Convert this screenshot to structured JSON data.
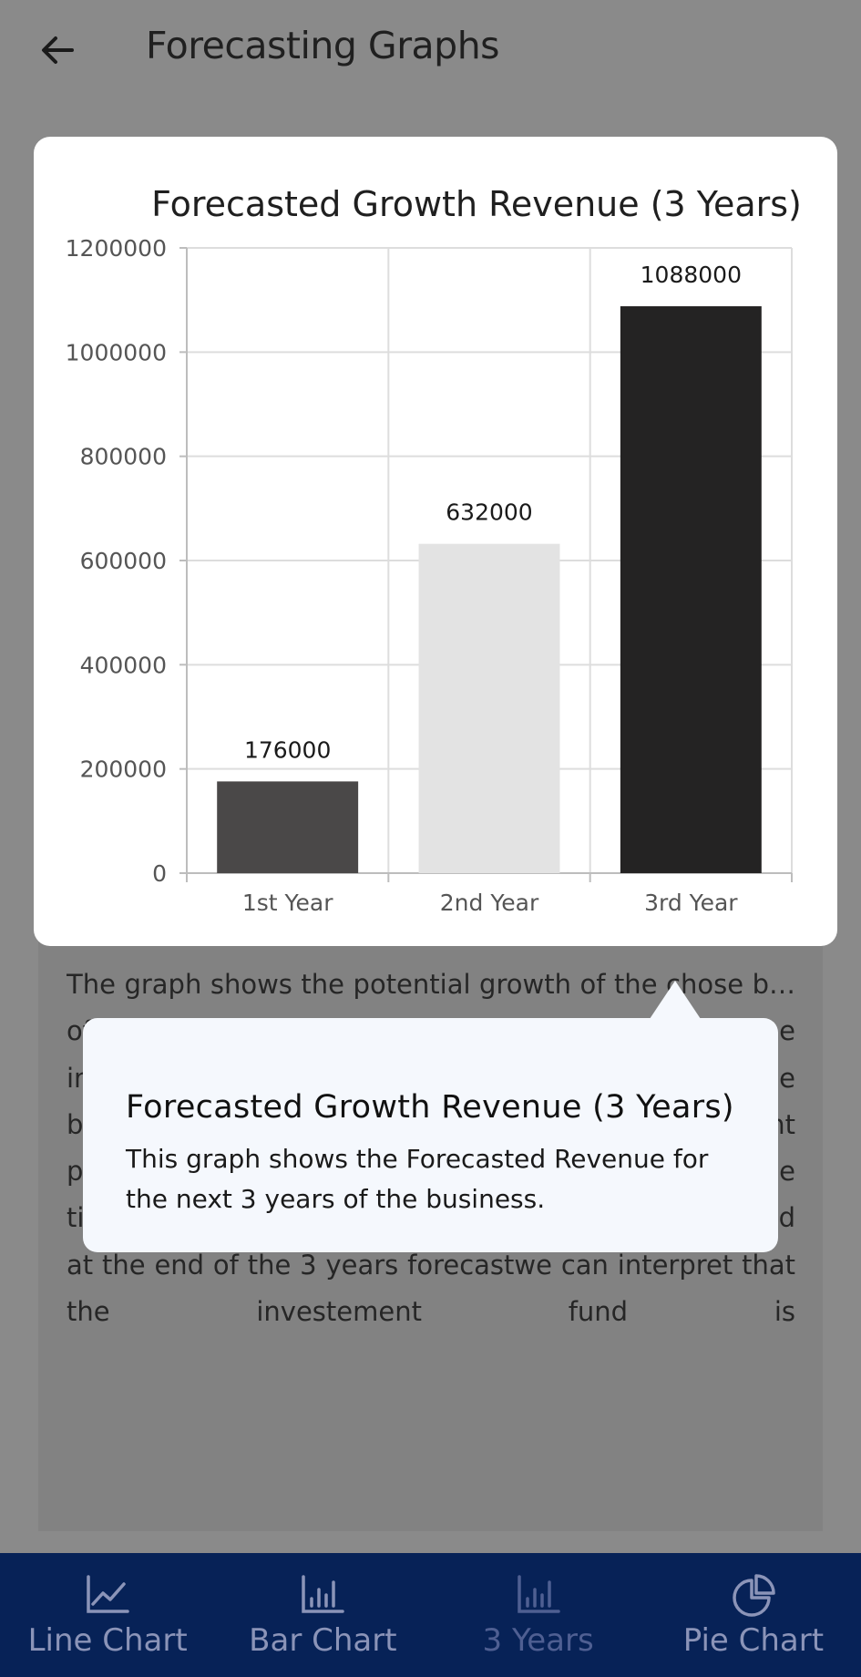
{
  "header": {
    "title": "Forecasting Graphs"
  },
  "chart_data": {
    "type": "bar",
    "title": "Forecasted Growth Revenue (3 Years)",
    "categories": [
      "1st Year",
      "2nd Year",
      "3rd Year"
    ],
    "values": [
      176000,
      632000,
      1088000
    ],
    "data_labels": [
      "176000",
      "632000",
      "1088000"
    ],
    "colors": [
      "#4a4848",
      "#e3e3e3",
      "#242323"
    ],
    "ylim": [
      0,
      1200000
    ],
    "yticks": [
      0,
      200000,
      400000,
      600000,
      800000,
      1000000,
      1200000
    ],
    "ytick_labels": [
      "0",
      "200000",
      "400000",
      "600000",
      "800000",
      "1000000",
      "1200000"
    ],
    "xlabel": "",
    "ylabel": "",
    "grid": true
  },
  "description": {
    "text": "The graph shows the potential growth of the chose b… of v… s s… s d… t y… is being subtracted from the initial anual revenue as a result it has a lower income but the following years as foreacstedwith diffrent parameters (excluding the marketing cost and one time cost) as an outcome it has a bigger revenue and at the end of the 3 years forecastwe can interpret that the investement fund is"
  },
  "tooltip": {
    "title": "Forecasted Growth Revenue (3 Years)",
    "body": "This graph shows the Forecasted Revenue for the next 3 years of the business."
  },
  "bottom_nav": {
    "items": [
      {
        "label": "Line Chart",
        "icon": "line-chart-icon"
      },
      {
        "label": "Bar Chart",
        "icon": "bar-chart-icon"
      },
      {
        "label": "3 Years",
        "icon": "bar-chart-icon"
      },
      {
        "label": "Pie Chart",
        "icon": "pie-chart-icon"
      }
    ],
    "active_index": 2
  }
}
